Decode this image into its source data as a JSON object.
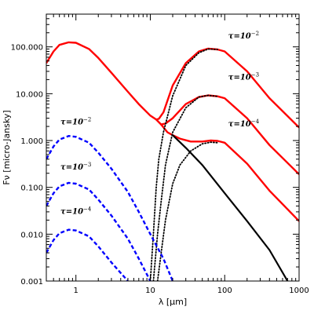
{
  "chart_data": {
    "type": "line",
    "title": "",
    "xlabel": "λ [μm]",
    "ylabel": "Fν [micro-Jansky]",
    "x_scale": "log",
    "y_scale": "log",
    "xlim": [
      0.4,
      1000
    ],
    "ylim": [
      0.001,
      500
    ],
    "x_ticks": [
      1,
      10,
      100,
      1000
    ],
    "x_tick_labels": [
      "1",
      "10",
      "100",
      "1000"
    ],
    "y_ticks": [
      0.001,
      0.01,
      0.1,
      1,
      10,
      100
    ],
    "y_tick_labels": [
      "0.001",
      "0.010",
      "0.100",
      "1.000",
      "10.000",
      "100.000"
    ],
    "grid": false,
    "series": [
      {
        "color": "#ff0000",
        "style": "solid",
        "width": 2.4,
        "points": [
          [
            0.4,
            45
          ],
          [
            0.5,
            80
          ],
          [
            0.6,
            110
          ],
          [
            0.8,
            125
          ],
          [
            1.0,
            122
          ],
          [
            1.5,
            90
          ],
          [
            2,
            58
          ],
          [
            3,
            28
          ],
          [
            5,
            11
          ],
          [
            7,
            6
          ],
          [
            10,
            3.4
          ],
          [
            12,
            2.8
          ],
          [
            13,
            2.9
          ],
          [
            15,
            4
          ],
          [
            20,
            15
          ],
          [
            30,
            45
          ],
          [
            45,
            80
          ],
          [
            60,
            92
          ],
          [
            80,
            88
          ],
          [
            100,
            80
          ],
          [
            200,
            30
          ],
          [
            400,
            8
          ],
          [
            1000,
            1.9
          ]
        ]
      },
      {
        "color": "#ff0000",
        "style": "solid",
        "width": 2.4,
        "points": [
          [
            12,
            2.8
          ],
          [
            14,
            2.2
          ],
          [
            16,
            2.3
          ],
          [
            20,
            3.0
          ],
          [
            30,
            6
          ],
          [
            45,
            8.5
          ],
          [
            60,
            9.2
          ],
          [
            80,
            8.8
          ],
          [
            100,
            8
          ],
          [
            200,
            3
          ],
          [
            400,
            0.8
          ],
          [
            1000,
            0.19
          ]
        ]
      },
      {
        "color": "#ff0000",
        "style": "solid",
        "width": 2.4,
        "points": [
          [
            14,
            2.2
          ],
          [
            17,
            1.5
          ],
          [
            20,
            1.3
          ],
          [
            25,
            1.1
          ],
          [
            35,
            0.95
          ],
          [
            50,
            0.95
          ],
          [
            65,
            1.0
          ],
          [
            80,
            0.98
          ],
          [
            100,
            0.9
          ],
          [
            200,
            0.32
          ],
          [
            400,
            0.085
          ],
          [
            1000,
            0.019
          ]
        ]
      },
      {
        "color": "#000000",
        "style": "solid",
        "width": 2.2,
        "points": [
          [
            20,
            1.3
          ],
          [
            30,
            0.7
          ],
          [
            50,
            0.3
          ],
          [
            100,
            0.075
          ],
          [
            200,
            0.019
          ],
          [
            400,
            0.0046
          ],
          [
            700,
            0.001
          ]
        ]
      },
      {
        "color": "#000000",
        "style": "dotted",
        "width": 1.8,
        "points": [
          [
            10,
            0.001
          ],
          [
            11,
            0.01
          ],
          [
            12,
            0.1
          ],
          [
            13,
            0.4
          ],
          [
            15,
            1.5
          ],
          [
            20,
            9
          ],
          [
            30,
            40
          ],
          [
            45,
            75
          ],
          [
            60,
            90
          ],
          [
            80,
            88
          ]
        ]
      },
      {
        "color": "#000000",
        "style": "dotted",
        "width": 1.8,
        "points": [
          [
            11,
            0.001
          ],
          [
            12.5,
            0.01
          ],
          [
            14,
            0.05
          ],
          [
            16,
            0.3
          ],
          [
            20,
            1.5
          ],
          [
            30,
            5
          ],
          [
            45,
            8.5
          ],
          [
            60,
            9.2
          ],
          [
            80,
            8.8
          ]
        ]
      },
      {
        "color": "#000000",
        "style": "dotted",
        "width": 1.8,
        "points": [
          [
            12.5,
            0.001
          ],
          [
            14,
            0.004
          ],
          [
            16,
            0.02
          ],
          [
            20,
            0.12
          ],
          [
            25,
            0.3
          ],
          [
            35,
            0.6
          ],
          [
            50,
            0.85
          ],
          [
            65,
            0.92
          ],
          [
            80,
            0.9
          ]
        ]
      },
      {
        "color": "#0000ff",
        "style": "dashed",
        "width": 2.4,
        "points": [
          [
            0.4,
            0.4
          ],
          [
            0.5,
            0.75
          ],
          [
            0.6,
            1.05
          ],
          [
            0.8,
            1.25
          ],
          [
            1.0,
            1.2
          ],
          [
            1.5,
            0.9
          ],
          [
            2,
            0.55
          ],
          [
            3,
            0.25
          ],
          [
            5,
            0.08
          ],
          [
            7,
            0.03
          ],
          [
            10,
            0.01
          ],
          [
            15,
            0.003
          ],
          [
            20,
            0.001
          ]
        ]
      },
      {
        "color": "#0000ff",
        "style": "dashed",
        "width": 2.4,
        "points": [
          [
            0.4,
            0.04
          ],
          [
            0.5,
            0.075
          ],
          [
            0.6,
            0.105
          ],
          [
            0.8,
            0.125
          ],
          [
            1.0,
            0.12
          ],
          [
            1.5,
            0.09
          ],
          [
            2,
            0.055
          ],
          [
            3,
            0.025
          ],
          [
            5,
            0.008
          ],
          [
            7,
            0.003
          ],
          [
            10,
            0.001
          ]
        ]
      },
      {
        "color": "#0000ff",
        "style": "dashed",
        "width": 2.4,
        "points": [
          [
            0.4,
            0.004
          ],
          [
            0.5,
            0.0075
          ],
          [
            0.6,
            0.0105
          ],
          [
            0.8,
            0.0125
          ],
          [
            1.0,
            0.012
          ],
          [
            1.5,
            0.009
          ],
          [
            2,
            0.0055
          ],
          [
            3,
            0.0025
          ],
          [
            5,
            0.001
          ]
        ]
      }
    ],
    "annotations": [
      {
        "base": "τ=10",
        "exp": "−2",
        "x": 180,
        "y": 150
      },
      {
        "base": "τ=10",
        "exp": "−3",
        "x": 180,
        "y": 20
      },
      {
        "base": "τ=10",
        "exp": "−4",
        "x": 180,
        "y": 2.0
      },
      {
        "base": "τ=10",
        "exp": "−2",
        "x": 1.0,
        "y": 2.2
      },
      {
        "base": "τ=10",
        "exp": "−3",
        "x": 1.0,
        "y": 0.24
      },
      {
        "base": "τ=10",
        "exp": "−4",
        "x": 1.0,
        "y": 0.027
      }
    ]
  }
}
